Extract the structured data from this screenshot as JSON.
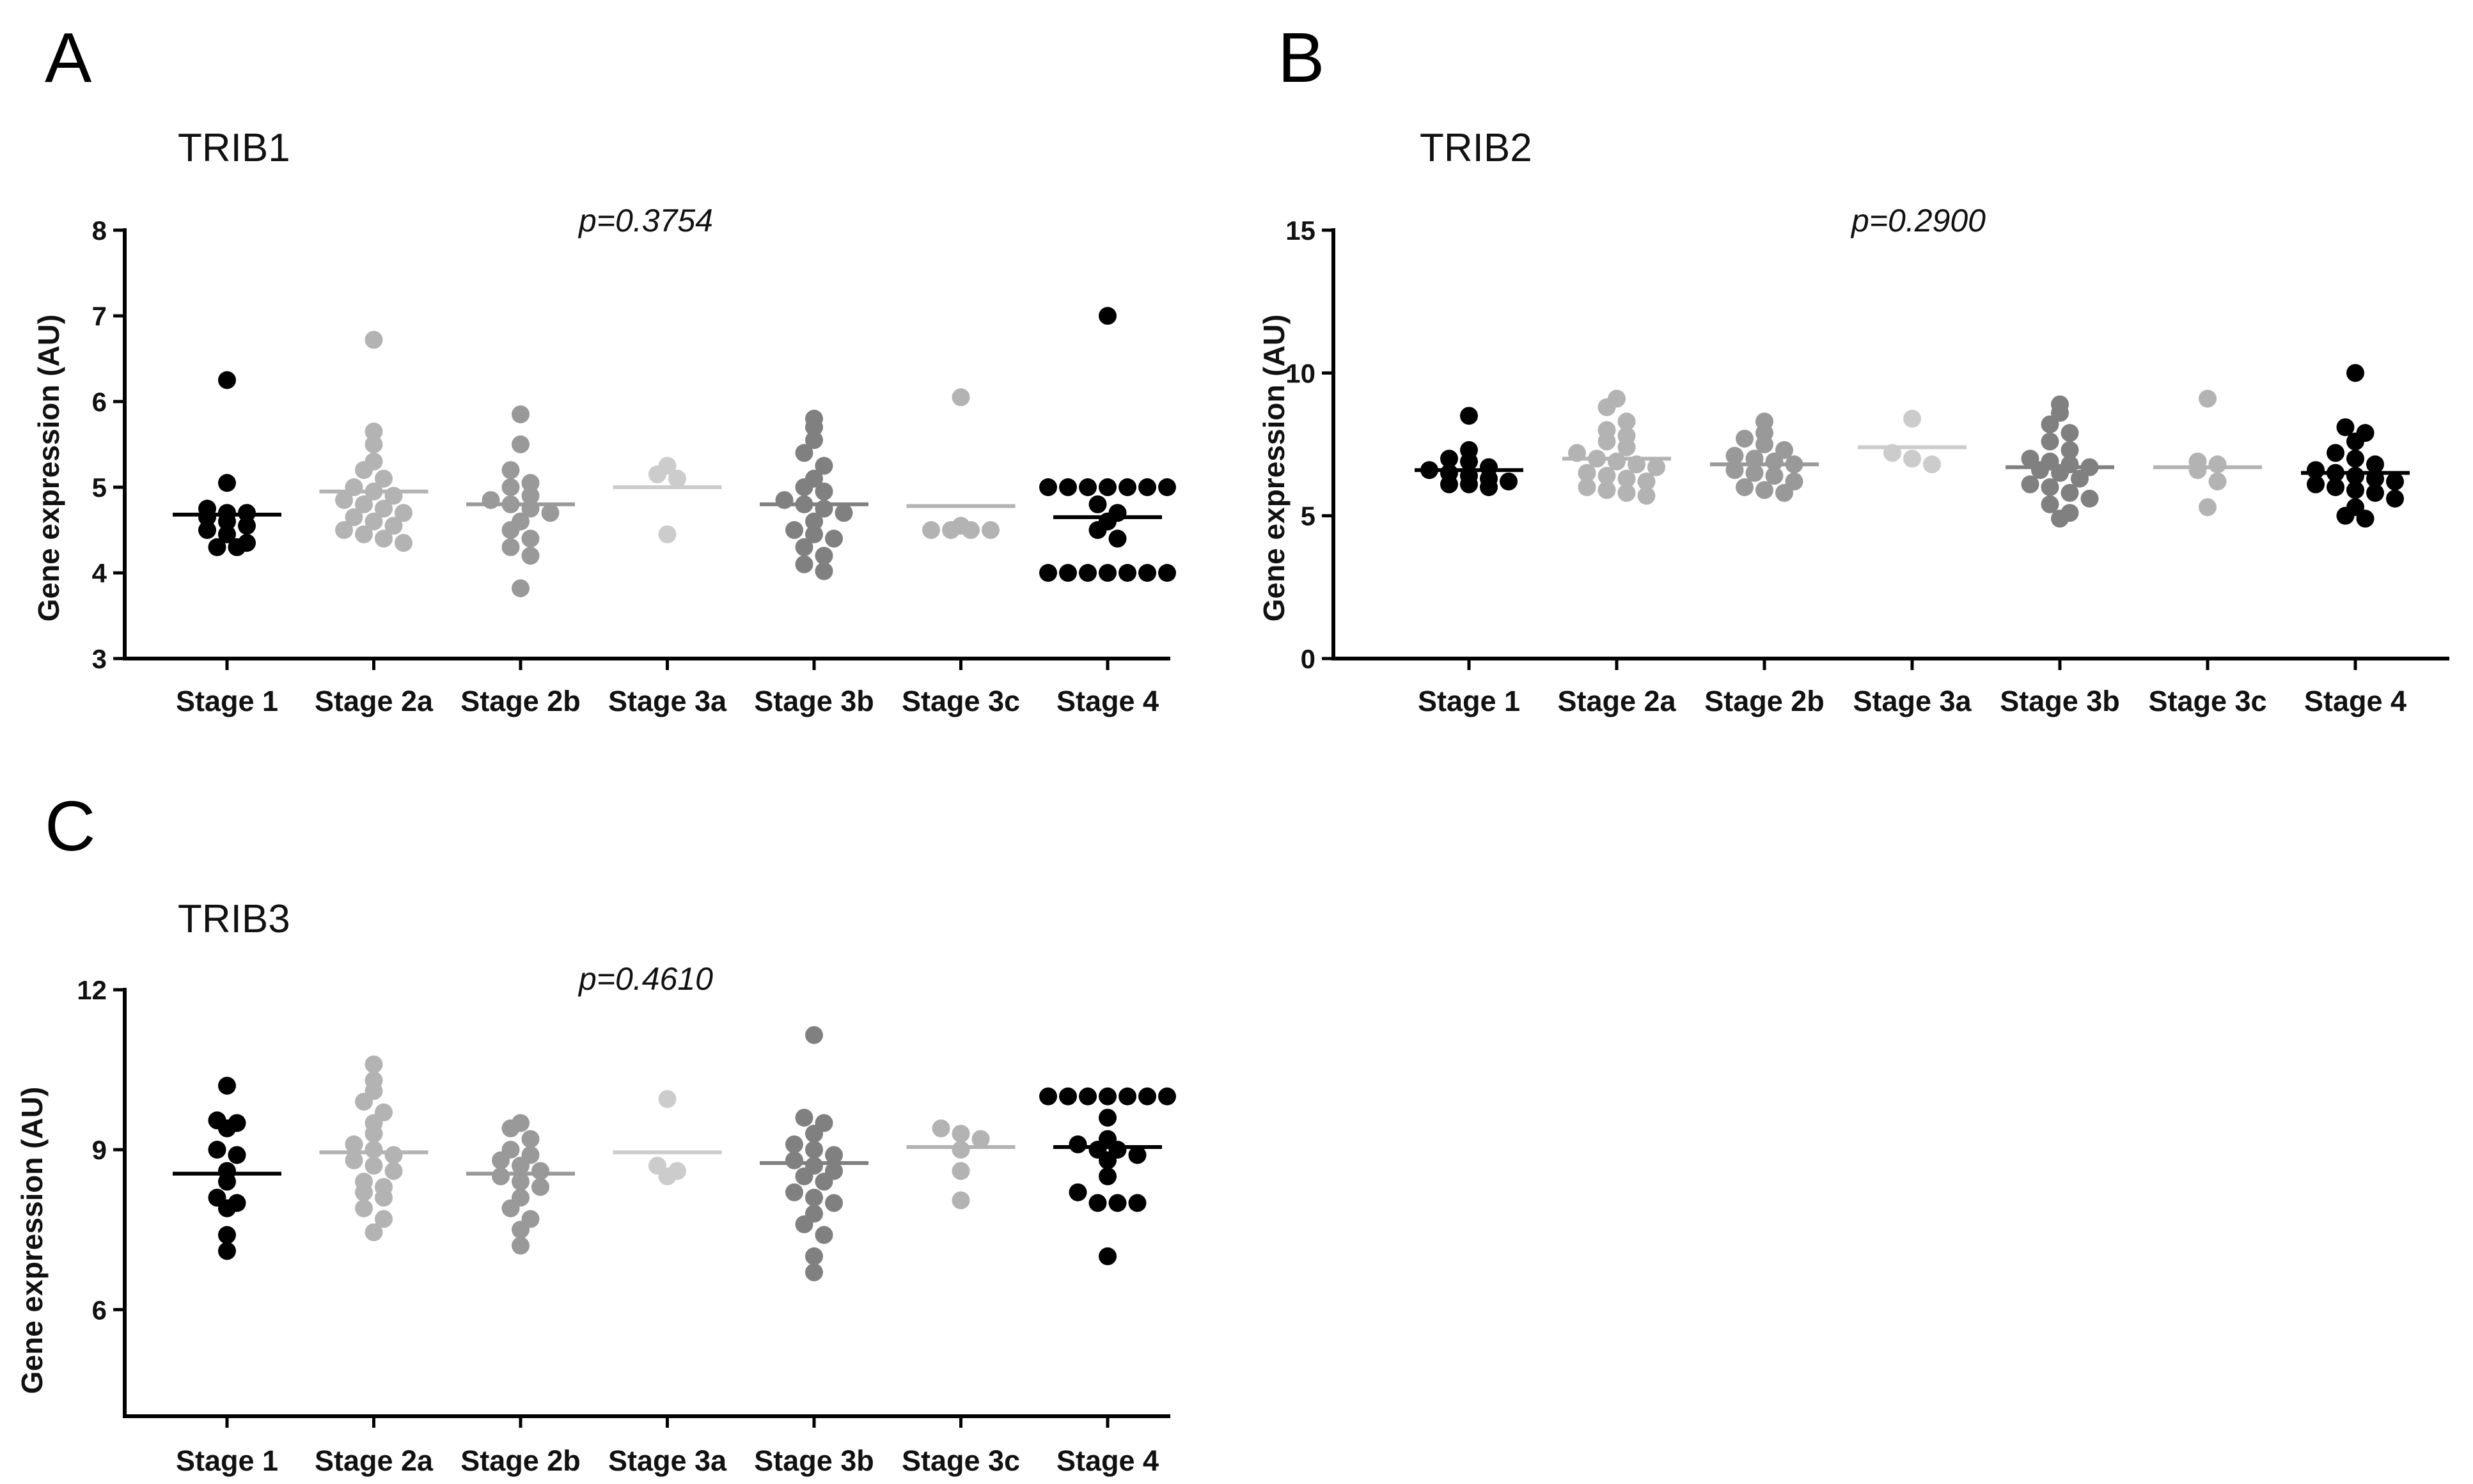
{
  "chart_data": [
    {
      "panel": "A",
      "type": "scatter",
      "title": "TRIB1",
      "annotation": "p=0.3754",
      "ylabel": "Gene expression  (AU)",
      "xlabel": "",
      "ylim": [
        3,
        8
      ],
      "yticks": [
        3,
        4,
        5,
        6,
        7,
        8
      ],
      "grid": false,
      "categories": [
        "Stage 1",
        "Stage 2a",
        "Stage 2b",
        "Stage 3a",
        "Stage 3b",
        "Stage 3c",
        "Stage 4"
      ],
      "colors": [
        "#000000",
        "#b3b3b3",
        "#999999",
        "#cccccc",
        "#808080",
        "#b3b3b3",
        "#000000"
      ],
      "means": [
        4.68,
        4.95,
        4.8,
        5.0,
        4.8,
        4.78,
        4.65
      ],
      "points": [
        [
          6.25,
          5.05,
          4.75,
          4.7,
          4.7,
          4.65,
          4.6,
          4.55,
          4.5,
          4.45,
          4.35,
          4.3,
          4.3
        ],
        [
          6.72,
          5.65,
          5.5,
          5.3,
          5.2,
          5.1,
          5.0,
          4.95,
          4.9,
          4.85,
          4.8,
          4.75,
          4.7,
          4.65,
          4.6,
          4.55,
          4.5,
          4.45,
          4.4,
          4.35
        ],
        [
          5.85,
          5.5,
          5.2,
          5.05,
          5.0,
          4.9,
          4.85,
          4.8,
          4.75,
          4.7,
          4.6,
          4.5,
          4.4,
          4.3,
          4.2,
          3.82
        ],
        [
          5.25,
          5.15,
          5.1,
          4.45
        ],
        [
          5.8,
          5.7,
          5.55,
          5.4,
          5.25,
          5.1,
          5.0,
          4.95,
          4.85,
          4.8,
          4.75,
          4.7,
          4.6,
          4.5,
          4.45,
          4.4,
          4.3,
          4.2,
          4.1,
          4.02
        ],
        [
          6.05,
          4.55,
          4.5,
          4.5,
          4.5,
          4.5
        ],
        [
          7.0,
          5.0,
          5.0,
          5.0,
          5.0,
          5.0,
          5.0,
          5.0,
          4.8,
          4.7,
          4.6,
          4.5,
          4.4,
          4.0,
          4.0,
          4.0,
          4.0,
          4.0,
          4.0,
          4.0
        ]
      ]
    },
    {
      "panel": "B",
      "type": "scatter",
      "title": "TRIB2",
      "annotation": "p=0.2900",
      "ylabel": "Gene expression  (AU)",
      "xlabel": "",
      "ylim": [
        0,
        15
      ],
      "yticks": [
        0,
        5,
        10,
        15
      ],
      "grid": false,
      "categories": [
        "Stage 1",
        "Stage 2a",
        "Stage 2b",
        "Stage 3a",
        "Stage 3b",
        "Stage 3c",
        "Stage 4"
      ],
      "colors": [
        "#000000",
        "#b3b3b3",
        "#999999",
        "#cccccc",
        "#808080",
        "#b3b3b3",
        "#000000"
      ],
      "means": [
        6.6,
        7.0,
        6.8,
        7.4,
        6.7,
        6.7,
        6.5
      ],
      "points": [
        [
          8.5,
          7.3,
          7.0,
          6.9,
          6.7,
          6.6,
          6.5,
          6.4,
          6.3,
          6.2,
          6.1,
          6.1,
          6.0
        ],
        [
          9.1,
          8.8,
          8.3,
          8.0,
          7.8,
          7.6,
          7.4,
          7.2,
          7.0,
          6.9,
          6.8,
          6.7,
          6.5,
          6.4,
          6.3,
          6.2,
          6.0,
          5.9,
          5.8,
          5.7
        ],
        [
          8.3,
          7.9,
          7.7,
          7.5,
          7.3,
          7.1,
          7.0,
          6.9,
          6.8,
          6.6,
          6.5,
          6.4,
          6.2,
          6.0,
          5.9,
          5.8
        ],
        [
          8.4,
          7.2,
          7.0,
          6.8
        ],
        [
          8.9,
          8.6,
          8.2,
          7.9,
          7.6,
          7.3,
          7.0,
          6.9,
          6.8,
          6.7,
          6.6,
          6.5,
          6.3,
          6.1,
          6.0,
          5.8,
          5.6,
          5.4,
          5.1,
          4.9
        ],
        [
          9.1,
          6.9,
          6.8,
          6.6,
          6.2,
          5.3
        ],
        [
          10.0,
          8.1,
          7.9,
          7.6,
          7.2,
          7.0,
          6.8,
          6.6,
          6.5,
          6.4,
          6.3,
          6.2,
          6.1,
          6.0,
          5.9,
          5.8,
          5.6,
          5.3,
          5.0,
          4.9
        ]
      ]
    },
    {
      "panel": "C",
      "type": "scatter",
      "title": "TRIB3",
      "annotation": "p=0.4610",
      "ylabel": "Gene expression  (AU)",
      "xlabel": "",
      "ylim": [
        4,
        12
      ],
      "yticks": [
        6,
        9,
        12
      ],
      "grid": false,
      "categories": [
        "Stage 1",
        "Stage 2a",
        "Stage 2b",
        "Stage 3a",
        "Stage 3b",
        "Stage 3c",
        "Stage 4"
      ],
      "colors": [
        "#000000",
        "#b3b3b3",
        "#999999",
        "#cccccc",
        "#808080",
        "#b3b3b3",
        "#000000"
      ],
      "means": [
        8.55,
        8.95,
        8.55,
        8.95,
        8.75,
        9.05,
        9.05
      ],
      "points": [
        [
          10.2,
          9.55,
          9.5,
          9.4,
          9.0,
          8.9,
          8.6,
          8.4,
          8.1,
          8.0,
          7.9,
          7.4,
          7.1
        ],
        [
          10.6,
          10.3,
          10.1,
          9.9,
          9.7,
          9.5,
          9.3,
          9.1,
          9.0,
          8.9,
          8.8,
          8.7,
          8.6,
          8.4,
          8.3,
          8.2,
          8.1,
          7.9,
          7.7,
          7.45
        ],
        [
          9.5,
          9.4,
          9.2,
          9.0,
          8.9,
          8.8,
          8.7,
          8.6,
          8.5,
          8.4,
          8.3,
          8.1,
          7.9,
          7.7,
          7.5,
          7.2
        ],
        [
          9.95,
          8.7,
          8.6,
          8.5
        ],
        [
          11.15,
          9.6,
          9.5,
          9.3,
          9.1,
          9.0,
          8.9,
          8.8,
          8.7,
          8.6,
          8.5,
          8.4,
          8.2,
          8.1,
          8.0,
          7.8,
          7.6,
          7.4,
          7.0,
          6.7
        ],
        [
          9.4,
          9.3,
          9.2,
          9.0,
          8.6,
          8.05
        ],
        [
          10.0,
          10.0,
          10.0,
          10.0,
          10.0,
          10.0,
          10.0,
          9.6,
          9.2,
          9.1,
          9.0,
          9.0,
          8.9,
          8.8,
          8.5,
          8.2,
          8.0,
          8.0,
          8.0,
          7.0
        ]
      ]
    }
  ]
}
